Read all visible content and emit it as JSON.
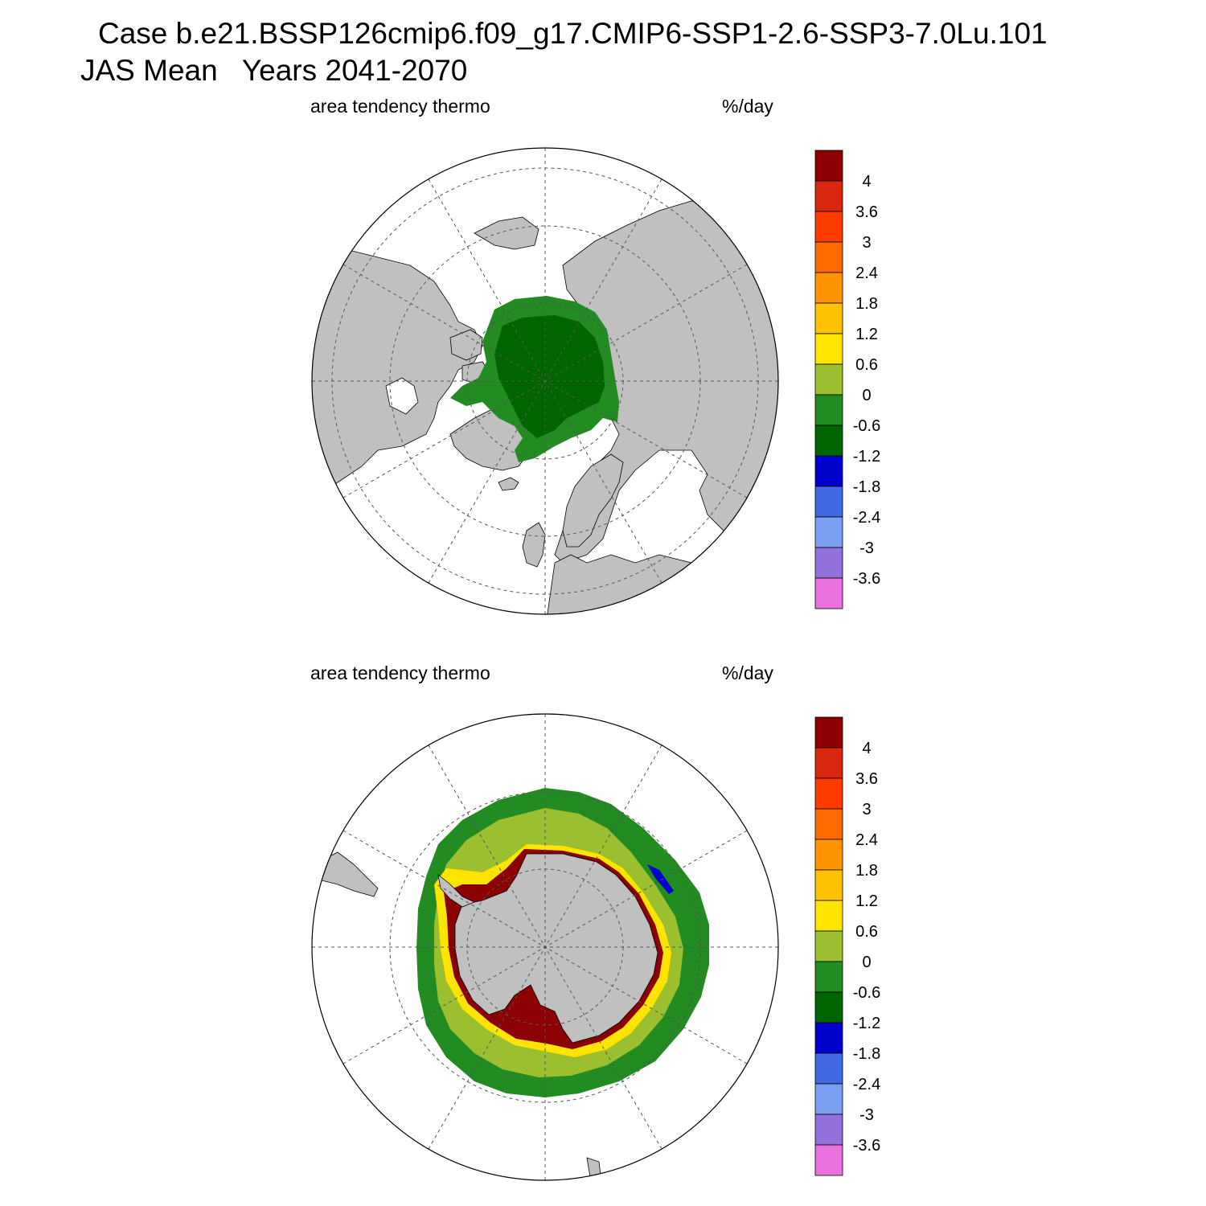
{
  "header": {
    "title_line1": "Case b.e21.BSSP126cmip6.f09_g17.CMIP6-SSP1-2.6-SSP3-7.0Lu.101",
    "title_line2": "JAS Mean   Years 2041-2070"
  },
  "panels": [
    {
      "id": "north",
      "hemisphere": "north",
      "left_label": "area tendency thermo",
      "right_label": "%/day"
    },
    {
      "id": "south",
      "hemisphere": "south",
      "left_label": "area tendency thermo",
      "right_label": "%/day"
    }
  ],
  "colorbar": {
    "labels": [
      "4",
      "3.6",
      "3",
      "2.4",
      "1.8",
      "1.2",
      "0.6",
      "0",
      "-0.6",
      "-1.2",
      "-1.8",
      "-2.4",
      "-3",
      "-3.6"
    ],
    "colors": [
      "#8b0000",
      "#d8260f",
      "#ff3c00",
      "#ff6a00",
      "#ff9400",
      "#ffc200",
      "#ffe400",
      "#9bbf2e",
      "#228b22",
      "#006400",
      "#0000cd",
      "#4169e1",
      "#7b9ff0",
      "#9370db",
      "#ea70dd"
    ]
  },
  "style": {
    "land": "#c0c0c0",
    "ocean": "#ffffff"
  }
}
